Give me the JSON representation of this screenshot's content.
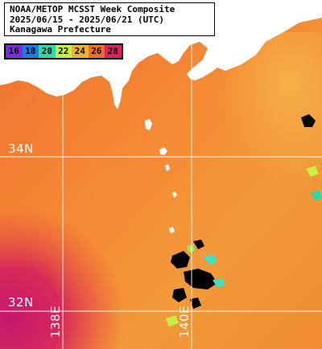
{
  "title": {
    "line1": "NOAA/METOP MCSST Week Composite",
    "line2": "2025/06/15 - 2025/06/21 (UTC)",
    "line3": "Kanagawa Prefecture"
  },
  "legend": {
    "values": [
      "16",
      "18",
      "20",
      "22",
      "24",
      "26",
      "28"
    ],
    "colors": [
      "#7a2ae0",
      "#1a7cf0",
      "#2ad8a8",
      "#c8f040",
      "#f0b030",
      "#f07020",
      "#e02060"
    ]
  },
  "grid": {
    "lat_labels": [
      "34N",
      "32N"
    ],
    "lon_labels": [
      "138E",
      "140E"
    ]
  },
  "colors": {
    "land": "#ffffff",
    "sst_warm": "#f07030",
    "sst_hot": "#d02060",
    "sst_cool": "#f0a040",
    "grid_line": "#ffffff",
    "cloud": "#000000"
  }
}
